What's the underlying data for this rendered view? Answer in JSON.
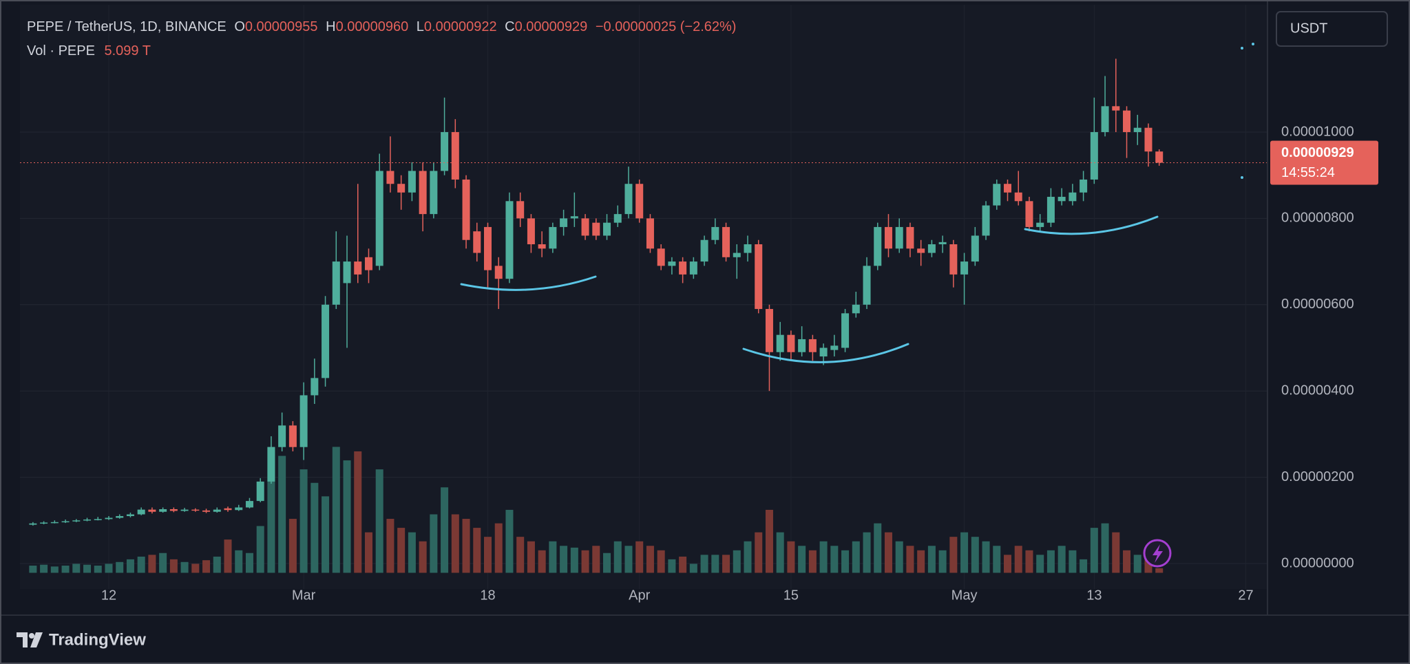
{
  "chart_data": {
    "type": "candlestick",
    "legend": {
      "symbol": "PEPE / TetherUS, 1D, BINANCE",
      "fields": [
        {
          "key": "O",
          "value": "0.00000955"
        },
        {
          "key": "H",
          "value": "0.00000960"
        },
        {
          "key": "L",
          "value": "0.00000922"
        },
        {
          "key": "C",
          "value": "0.00000929"
        }
      ],
      "change": "−0.00000025 (−2.62%)"
    },
    "volume_legend": {
      "name": "Vol · PEPE",
      "value_label": "5.099 T"
    },
    "currency": "USDT",
    "last_price_label": "0.00000929",
    "countdown": "14:55:24",
    "logo": "TradingView",
    "open": [
      9e-07,
      9.3e-07,
      9.5e-07,
      9.6e-07,
      9.8e-07,
      1e-06,
      1.02e-06,
      1.03e-06,
      1.06e-06,
      1.1e-06,
      1.14e-06,
      1.25e-06,
      1.2e-06,
      1.26e-06,
      1.22e-06,
      1.25e-06,
      1.23e-06,
      1.2e-06,
      1.28e-06,
      1.24e-06,
      1.3e-06,
      1.45e-06,
      1.9e-06,
      2.7e-06,
      3.2e-06,
      2.7e-06,
      3.9e-06,
      4.3e-06,
      6e-06,
      6.5e-06,
      7e-06,
      7.1e-06,
      6.9e-06,
      9.1e-06,
      8.8e-06,
      8.6e-06,
      9.1e-06,
      8.1e-06,
      9.1e-06,
      1e-05,
      8.9e-06,
      7.7e-06,
      7.8e-06,
      6.9e-06,
      6.6e-06,
      8.4e-06,
      8e-06,
      7.4e-06,
      7.3e-06,
      7.8e-06,
      8e-06,
      8e-06,
      7.9e-06,
      7.6e-06,
      7.9e-06,
      8.1e-06,
      8.8e-06,
      8e-06,
      7.3e-06,
      6.9e-06,
      7e-06,
      6.7e-06,
      7e-06,
      7.5e-06,
      7.8e-06,
      7.1e-06,
      7.2e-06,
      7.4e-06,
      5.9e-06,
      4.9e-06,
      5.3e-06,
      4.9e-06,
      5.2e-06,
      4.8e-06,
      4.95e-06,
      5e-06,
      5.8e-06,
      6e-06,
      6.9e-06,
      7.8e-06,
      7.3e-06,
      7.8e-06,
      7.3e-06,
      7.2e-06,
      7.4e-06,
      7.4e-06,
      6.7e-06,
      7e-06,
      7.6e-06,
      8.3e-06,
      8.8e-06,
      8.6e-06,
      8.4e-06,
      7.8e-06,
      7.9e-06,
      8.4e-06,
      8.4e-06,
      8.6e-06,
      8.9e-06,
      1e-05,
      1.06e-05,
      1.05e-05,
      1e-05,
      1.01e-05,
      9.55e-06
    ],
    "high": [
      9.6e-07,
      9.8e-07,
      1e-06,
      1.02e-06,
      1.03e-06,
      1.06e-06,
      1.08e-06,
      1.1e-06,
      1.14e-06,
      1.18e-06,
      1.3e-06,
      1.3e-06,
      1.3e-06,
      1.3e-06,
      1.29e-06,
      1.28e-06,
      1.27e-06,
      1.3e-06,
      1.32e-06,
      1.36e-06,
      1.52e-06,
      1.98e-06,
      2.95e-06,
      3.5e-06,
      3.3e-06,
      4.2e-06,
      4.75e-06,
      6.2e-06,
      7.7e-06,
      7.6e-06,
      8.8e-06,
      7.3e-06,
      9.5e-06,
      9.9e-06,
      9e-06,
      9.3e-06,
      9.3e-06,
      9.3e-06,
      1.08e-05,
      1.03e-05,
      9e-06,
      7.9e-06,
      7.9e-06,
      7.1e-06,
      8.6e-06,
      8.6e-06,
      8.1e-06,
      7.7e-06,
      7.9e-06,
      8.2e-06,
      8.6e-06,
      8.1e-06,
      8e-06,
      8.1e-06,
      8.3e-06,
      9.2e-06,
      8.9e-06,
      8.1e-06,
      7.4e-06,
      7.1e-06,
      7.1e-06,
      7.1e-06,
      7.6e-06,
      8e-06,
      7.9e-06,
      7.4e-06,
      7.6e-06,
      7.5e-06,
      6e-06,
      5.6e-06,
      5.4e-06,
      5.5e-06,
      5.3e-06,
      5.1e-06,
      5.3e-06,
      5.9e-06,
      6.3e-06,
      7.1e-06,
      7.9e-06,
      8.1e-06,
      8e-06,
      7.9e-06,
      7.5e-06,
      7.5e-06,
      7.6e-06,
      7.5e-06,
      7.2e-06,
      7.8e-06,
      8.4e-06,
      8.9e-06,
      8.9e-06,
      9.1e-06,
      8.5e-06,
      8.1e-06,
      8.7e-06,
      8.7e-06,
      8.8e-06,
      9.1e-06,
      1.08e-05,
      1.13e-05,
      1.17e-05,
      1.06e-05,
      1.04e-05,
      1.02e-05,
      9.6e-06
    ],
    "low": [
      8.8e-07,
      9.1e-07,
      9.3e-07,
      9.4e-07,
      9.6e-07,
      9.8e-07,
      1e-06,
      1.01e-06,
      1.04e-06,
      1.07e-06,
      1.12e-06,
      1.16e-06,
      1.18e-06,
      1.19e-06,
      1.2e-06,
      1.2e-06,
      1.17e-06,
      1.18e-06,
      1.2e-06,
      1.22e-06,
      1.28e-06,
      1.42e-06,
      1.85e-06,
      2.6e-06,
      2.6e-06,
      2.4e-06,
      3.7e-06,
      4.1e-06,
      5.9e-06,
      5e-06,
      6.5e-06,
      6.5e-06,
      6.8e-06,
      8.6e-06,
      8.2e-06,
      8.4e-06,
      7.7e-06,
      8e-06,
      9e-06,
      8.7e-06,
      7.3e-06,
      7e-06,
      6.4e-06,
      5.9e-06,
      6.5e-06,
      7.8e-06,
      7.2e-06,
      7.1e-06,
      7.2e-06,
      7.6e-06,
      7.8e-06,
      7.5e-06,
      7.5e-06,
      7.5e-06,
      7.8e-06,
      8e-06,
      7.9e-06,
      7.2e-06,
      6.8e-06,
      6.7e-06,
      6.5e-06,
      6.6e-06,
      6.9e-06,
      7.4e-06,
      7e-06,
      6.6e-06,
      7e-06,
      5.8e-06,
      4e-06,
      4.7e-06,
      4.7e-06,
      4.8e-06,
      4.7e-06,
      4.6e-06,
      4.8e-06,
      4.9e-06,
      5.7e-06,
      5.9e-06,
      6.8e-06,
      7.1e-06,
      7.2e-06,
      7.1e-06,
      6.9e-06,
      7.1e-06,
      7.2e-06,
      6.4e-06,
      6e-06,
      6.9e-06,
      7.5e-06,
      8.2e-06,
      8.4e-06,
      8.3e-06,
      7.7e-06,
      7.7e-06,
      7.8e-06,
      8.3e-06,
      8.3e-06,
      8.4e-06,
      8.8e-06,
      9.9e-06,
      1e-05,
      9.4e-06,
      9.7e-06,
      9.2e-06,
      9.22e-06
    ],
    "close": [
      9.3e-07,
      9.5e-07,
      9.6e-07,
      9.8e-07,
      1e-06,
      1.02e-06,
      1.03e-06,
      1.06e-06,
      1.1e-06,
      1.14e-06,
      1.25e-06,
      1.2e-06,
      1.26e-06,
      1.22e-06,
      1.25e-06,
      1.23e-06,
      1.2e-06,
      1.25e-06,
      1.24e-06,
      1.3e-06,
      1.45e-06,
      1.9e-06,
      2.7e-06,
      3.2e-06,
      2.7e-06,
      3.9e-06,
      4.3e-06,
      6e-06,
      7e-06,
      7e-06,
      6.7e-06,
      6.8e-06,
      9.1e-06,
      8.8e-06,
      8.6e-06,
      9.1e-06,
      8.1e-06,
      9.1e-06,
      1e-05,
      8.9e-06,
      7.5e-06,
      7.2e-06,
      6.8e-06,
      6.6e-06,
      8.4e-06,
      8e-06,
      7.4e-06,
      7.3e-06,
      7.8e-06,
      8e-06,
      8.05e-06,
      7.6e-06,
      7.6e-06,
      7.9e-06,
      8.1e-06,
      8.8e-06,
      8e-06,
      7.3e-06,
      6.9e-06,
      7e-06,
      6.7e-06,
      7e-06,
      7.5e-06,
      7.8e-06,
      7.1e-06,
      7.2e-06,
      7.4e-06,
      5.9e-06,
      4.9e-06,
      5.3e-06,
      4.9e-06,
      5.2e-06,
      4.9e-06,
      5e-06,
      5.05e-06,
      5.8e-06,
      6e-06,
      6.9e-06,
      7.8e-06,
      7.3e-06,
      7.8e-06,
      7.3e-06,
      7.2e-06,
      7.4e-06,
      7.45e-06,
      6.7e-06,
      7e-06,
      7.6e-06,
      8.3e-06,
      8.8e-06,
      8.6e-06,
      8.4e-06,
      7.8e-06,
      7.9e-06,
      8.5e-06,
      8.5e-06,
      8.6e-06,
      8.9e-06,
      1e-05,
      1.06e-05,
      1.05e-05,
      1e-05,
      1.01e-05,
      9.55e-06,
      9.29e-06
    ],
    "volume": [
      8,
      9,
      7,
      8,
      10,
      9,
      8,
      10,
      12,
      15,
      18,
      20,
      22,
      15,
      12,
      10,
      14,
      18,
      37,
      25,
      22,
      52,
      140,
      130,
      60,
      115,
      100,
      85,
      140,
      125,
      135,
      45,
      115,
      60,
      50,
      45,
      35,
      65,
      95,
      65,
      60,
      50,
      40,
      55,
      70,
      40,
      35,
      25,
      35,
      30,
      28,
      25,
      30,
      22,
      35,
      30,
      35,
      30,
      25,
      15,
      18,
      10,
      20,
      20,
      20,
      25,
      35,
      45,
      70,
      45,
      35,
      30,
      25,
      35,
      30,
      25,
      35,
      45,
      55,
      45,
      35,
      30,
      25,
      30,
      25,
      40,
      45,
      40,
      35,
      30,
      20,
      30,
      25,
      20,
      25,
      30,
      25,
      15,
      50,
      55,
      45,
      25,
      20,
      15,
      5.099
    ],
    "xlim": [
      -1.2,
      114
    ],
    "xticks": [
      {
        "value": 7,
        "label": "12"
      },
      {
        "value": 25,
        "label": "Mar"
      },
      {
        "value": 42,
        "label": "18"
      },
      {
        "value": 56,
        "label": "Apr"
      },
      {
        "value": 70,
        "label": "15"
      },
      {
        "value": 86,
        "label": "May"
      },
      {
        "value": 98,
        "label": "13"
      },
      {
        "value": 112,
        "label": "27"
      }
    ],
    "ylim": [
      -5.9e-07,
      1.295e-05
    ],
    "yticks": [
      {
        "value": 0,
        "label": "0.00000000"
      },
      {
        "value": 2e-06,
        "label": "0.00000200"
      },
      {
        "value": 4e-06,
        "label": "0.00000400"
      },
      {
        "value": 6e-06,
        "label": "0.00000600"
      },
      {
        "value": 8e-06,
        "label": "0.00000800"
      },
      {
        "value": 1e-05,
        "label": "0.00001000"
      }
    ],
    "volume_ylim": [
      -18,
      200
    ],
    "up_color": "#4fae9c",
    "down_color": "#e5625b",
    "volume_up_color": "#2d6660",
    "volume_down_color": "#7b3934",
    "grid": true
  }
}
